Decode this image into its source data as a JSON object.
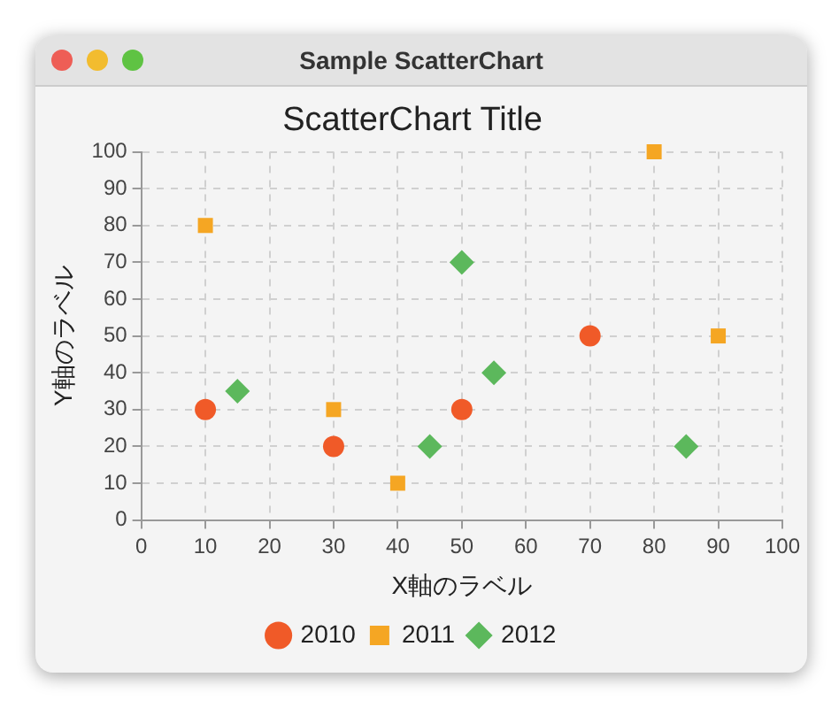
{
  "chart_data": {
    "type": "scatter",
    "title": "ScatterChart Title",
    "xlabel": "X軸のラベル",
    "ylabel": "Y軸のラベル",
    "annotations": [
      "Sample ScatterChart"
    ],
    "xlim": [
      0,
      100
    ],
    "xticks": [
      0,
      10,
      20,
      30,
      40,
      50,
      60,
      70,
      80,
      90,
      100
    ],
    "ylim": [
      0,
      100
    ],
    "yticks": [
      0,
      10,
      20,
      30,
      40,
      50,
      60,
      70,
      80,
      90,
      100
    ],
    "grid": true,
    "line_style": "dashed",
    "legend": "bottom",
    "series": [
      {
        "name": "2010",
        "color": "#f05a28",
        "marker": "circle",
        "x": [
          10,
          30,
          50,
          70
        ],
        "values": [
          30,
          20,
          30,
          50
        ]
      },
      {
        "name": "2011",
        "color": "#f5a623",
        "marker": "square",
        "x": [
          10,
          30,
          40,
          80,
          90
        ],
        "values": [
          80,
          30,
          10,
          100,
          50
        ]
      },
      {
        "name": "2012",
        "color": "#5cb85c",
        "marker": "diamond",
        "x": [
          15,
          45,
          50,
          55,
          85
        ],
        "values": [
          35,
          20,
          70,
          40,
          20
        ]
      }
    ]
  }
}
